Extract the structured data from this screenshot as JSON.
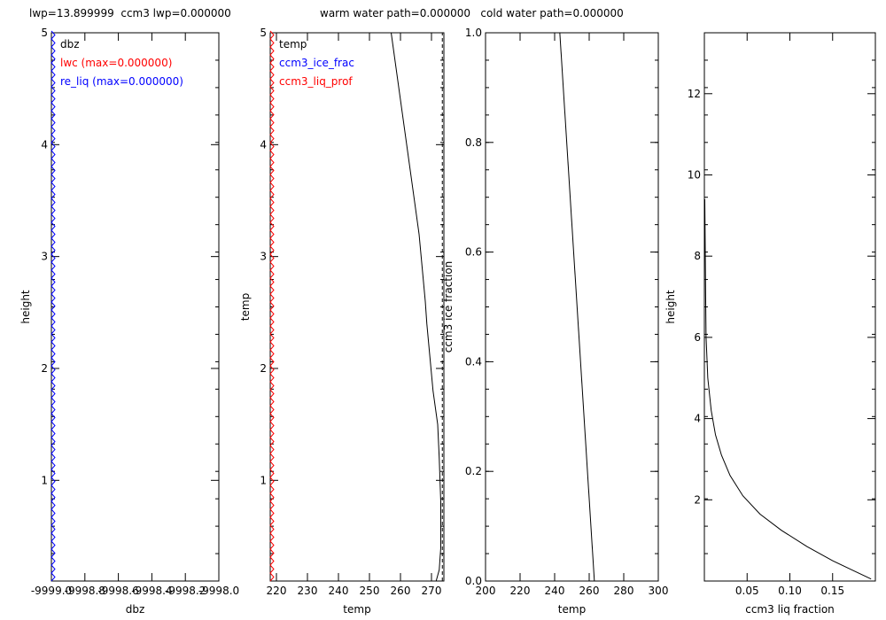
{
  "header": {
    "left": "lwp=13.899999  ccm3 lwp=0.000000",
    "right": "warm water path=0.000000   cold water path=0.000000"
  },
  "colors": {
    "red": "#ff0000",
    "blue": "#0000ff",
    "black": "#000000"
  },
  "chart_data": [
    {
      "type": "line",
      "xlabel": "dbz",
      "ylabel": "height",
      "xlim": [
        -9999.0,
        -9998.0
      ],
      "ylim": [
        0.1,
        5.0
      ],
      "xticks": [
        "-9999.0",
        "-9998.8",
        "-9998.6",
        "-9998.4",
        "-9998.2",
        "-9998.0"
      ],
      "yticks": [
        "1",
        "2",
        "3",
        "4",
        "5"
      ],
      "ytick_values": [
        1,
        2,
        3,
        4,
        5
      ],
      "legend": [
        {
          "text": "dbz",
          "color": "#000000"
        },
        {
          "text": "lwc (max=0.000000)",
          "color": "#ff0000"
        },
        {
          "text": "re_liq (max=0.000000)",
          "color": "#0000ff"
        }
      ],
      "series": [
        {
          "name": "re_liq",
          "color": "#0000ff",
          "marker": "chevron",
          "x": [
            -9999.0,
            -9999.0
          ],
          "y": [
            0.1,
            5.0
          ]
        }
      ]
    },
    {
      "type": "line",
      "xlabel": "temp",
      "ylabel": "temp",
      "xlim": [
        218,
        274
      ],
      "ylim": [
        0.1,
        5.0
      ],
      "xticks": [
        "220",
        "230",
        "240",
        "250",
        "260",
        "270"
      ],
      "xtick_values": [
        220,
        230,
        240,
        250,
        260,
        270
      ],
      "yticks": [
        "1",
        "2",
        "3",
        "4",
        "5"
      ],
      "ytick_values": [
        1,
        2,
        3,
        4,
        5
      ],
      "legend": [
        {
          "text": "temp",
          "color": "#000000"
        },
        {
          "text": "ccm3_ice_frac",
          "color": "#0000ff"
        },
        {
          "text": "ccm3_liq_prof",
          "color": "#ff0000"
        }
      ],
      "series": [
        {
          "name": "temp",
          "color": "#000000",
          "x": [
            257,
            259,
            261,
            263,
            264.5,
            266,
            267,
            268,
            268.5,
            269.5,
            270.5,
            272,
            272.5,
            273,
            273,
            272.5,
            271.5
          ],
          "y": [
            5.0,
            4.6,
            4.2,
            3.8,
            3.5,
            3.2,
            2.9,
            2.6,
            2.4,
            2.1,
            1.8,
            1.5,
            1.2,
            0.8,
            0.4,
            0.2,
            0.1
          ]
        },
        {
          "name": "ccm3_liq_prof",
          "color": "#ff0000",
          "marker": "chevron",
          "x": [
            218,
            218
          ],
          "y": [
            0.1,
            5.0
          ]
        },
        {
          "name": "ccm3_ice_frac",
          "color": "#000000",
          "dash": "4,3",
          "x": [
            273.5,
            273.5
          ],
          "y": [
            0.1,
            5.0
          ]
        }
      ]
    },
    {
      "type": "line",
      "xlabel": "temp",
      "ylabel": "ccm3 ice fraction",
      "xlim": [
        200,
        300
      ],
      "ylim": [
        0.0,
        1.0
      ],
      "xticks": [
        "200",
        "220",
        "240",
        "260",
        "280",
        "300"
      ],
      "xtick_values": [
        200,
        220,
        240,
        260,
        280,
        300
      ],
      "yticks": [
        "0.0",
        "0.2",
        "0.4",
        "0.6",
        "0.8",
        "1.0"
      ],
      "ytick_values": [
        0.0,
        0.2,
        0.4,
        0.6,
        0.8,
        1.0
      ],
      "series": [
        {
          "name": "ice fraction",
          "color": "#000000",
          "x": [
            243,
            263
          ],
          "y": [
            1.0,
            0.0
          ]
        }
      ]
    },
    {
      "type": "line",
      "xlabel": "ccm3 liq fraction",
      "ylabel": "height",
      "xlim": [
        0.0,
        0.2
      ],
      "ylim": [
        0.0,
        13.5
      ],
      "xticks": [
        "0.05",
        "0.10",
        "0.15"
      ],
      "xtick_values": [
        0.05,
        0.1,
        0.15
      ],
      "yticks": [
        "2",
        "4",
        "6",
        "8",
        "10",
        "12"
      ],
      "ytick_values": [
        2,
        4,
        6,
        8,
        10,
        12
      ],
      "series": [
        {
          "name": "liq fraction",
          "color": "#000000",
          "x": [
            0.0005,
            0.001,
            0.0015,
            0.002,
            0.004,
            0.008,
            0.013,
            0.02,
            0.03,
            0.045,
            0.065,
            0.09,
            0.12,
            0.15,
            0.175,
            0.195
          ],
          "y": [
            9.4,
            8.2,
            7.0,
            6.0,
            5.0,
            4.2,
            3.6,
            3.1,
            2.6,
            2.1,
            1.65,
            1.25,
            0.85,
            0.5,
            0.25,
            0.05
          ]
        }
      ]
    }
  ]
}
